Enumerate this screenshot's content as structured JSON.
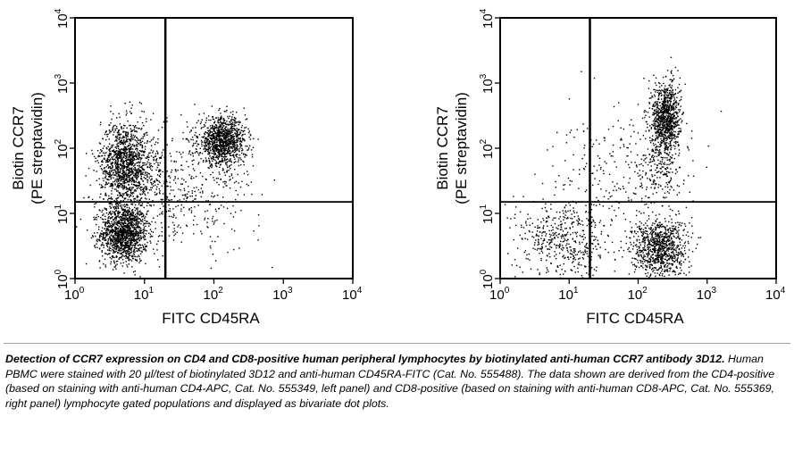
{
  "chart_data": [
    {
      "type": "scatter",
      "panel": "left",
      "xlabel": "FITC CD45RA",
      "ylabel_line1": "Biotin CCR7",
      "ylabel_line2": "(PE streptavidin)",
      "xscale": "log",
      "yscale": "log",
      "xlim": [
        1,
        10000
      ],
      "ylim": [
        1,
        10000
      ],
      "x_ticks": [
        {
          "base": "10",
          "exp": "0"
        },
        {
          "base": "10",
          "exp": "1"
        },
        {
          "base": "10",
          "exp": "2"
        },
        {
          "base": "10",
          "exp": "3"
        },
        {
          "base": "10",
          "exp": "4"
        }
      ],
      "y_ticks": [
        {
          "base": "10",
          "exp": "0"
        },
        {
          "base": "10",
          "exp": "1"
        },
        {
          "base": "10",
          "exp": "2"
        },
        {
          "base": "10",
          "exp": "3"
        },
        {
          "base": "10",
          "exp": "4"
        }
      ],
      "quadrant_gates": {
        "x": 20,
        "y": 15
      },
      "clusters": [
        {
          "x": 5,
          "y": 5,
          "spread_x": 0.17,
          "spread_y": 0.22,
          "points": 1300
        },
        {
          "x": 5,
          "y": 60,
          "spread_x": 0.17,
          "spread_y": 0.32,
          "points": 1100
        },
        {
          "x": 130,
          "y": 130,
          "spread_x": 0.17,
          "spread_y": 0.18,
          "points": 1100
        },
        {
          "x": 10,
          "y": 30,
          "spread_x": 0.35,
          "spread_y": 0.45,
          "points": 500
        },
        {
          "x": 60,
          "y": 20,
          "spread_x": 0.45,
          "spread_y": 0.45,
          "points": 250
        }
      ],
      "point_color": "#000000"
    },
    {
      "type": "scatter",
      "panel": "right",
      "xlabel": "FITC CD45RA",
      "ylabel_line1": "Biotin CCR7",
      "ylabel_line2": "(PE streptavidin)",
      "xscale": "log",
      "yscale": "log",
      "xlim": [
        1,
        10000
      ],
      "ylim": [
        1,
        10000
      ],
      "x_ticks": [
        {
          "base": "10",
          "exp": "0"
        },
        {
          "base": "10",
          "exp": "1"
        },
        {
          "base": "10",
          "exp": "2"
        },
        {
          "base": "10",
          "exp": "3"
        },
        {
          "base": "10",
          "exp": "4"
        }
      ],
      "y_ticks": [
        {
          "base": "10",
          "exp": "0"
        },
        {
          "base": "10",
          "exp": "1"
        },
        {
          "base": "10",
          "exp": "2"
        },
        {
          "base": "10",
          "exp": "3"
        },
        {
          "base": "10",
          "exp": "4"
        }
      ],
      "quadrant_gates": {
        "x": 20,
        "y": 15
      },
      "clusters": [
        {
          "x": 250,
          "y": 300,
          "spread_x": 0.1,
          "spread_y": 0.28,
          "points": 900
        },
        {
          "x": 200,
          "y": 3,
          "spread_x": 0.2,
          "spread_y": 0.22,
          "points": 900
        },
        {
          "x": 8,
          "y": 4,
          "spread_x": 0.35,
          "spread_y": 0.3,
          "points": 500
        },
        {
          "x": 60,
          "y": 40,
          "spread_x": 0.5,
          "spread_y": 0.5,
          "points": 250
        },
        {
          "x": 200,
          "y": 60,
          "spread_x": 0.15,
          "spread_y": 0.35,
          "points": 200
        }
      ],
      "point_color": "#000000"
    }
  ],
  "caption": {
    "bold_text": "Detection of CCR7 expression on CD4 and CD8-positive human peripheral lymphocytes by biotinylated anti-human CCR7 antibody 3D12.",
    "body_text": " Human PBMC were stained with 20 µl/test of biotinylated 3D12 and anti-human CD45RA-FITC (Cat. No. 555488). The data shown are derived from the CD4-positive (based on staining with anti-human CD4-APC, Cat. No. 555349, left panel) and CD8-positive (based on staining with anti-human CD8-APC, Cat. No. 555369, right panel) lymphocyte gated populations and displayed as bivariate dot plots."
  }
}
